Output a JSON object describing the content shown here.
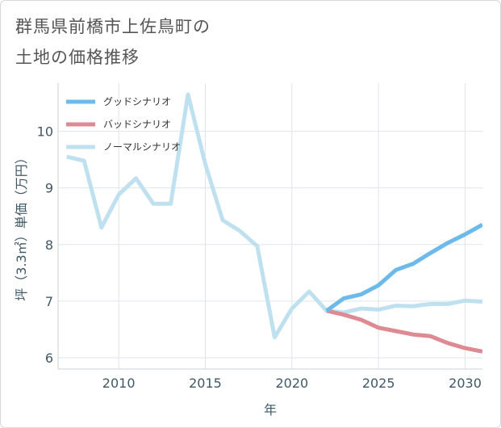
{
  "title": [
    "群馬県前橋市上佐鳥町の",
    "土地の価格推移"
  ],
  "chart_data": {
    "type": "line",
    "xlabel": "年",
    "ylabel": "坪（3.3㎡）単価（万円）",
    "xlim": [
      2006.5,
      2031
    ],
    "ylim": [
      5.8,
      10.85
    ],
    "xticks": [
      2010,
      2015,
      2020,
      2025,
      2030
    ],
    "yticks": [
      6,
      7,
      8,
      9,
      10
    ],
    "grid": true,
    "legend_position": "top-left",
    "series": [
      {
        "name": "グッドシナリオ",
        "color": "#6cbaec",
        "x": [
          2022,
          2023,
          2024,
          2025,
          2026,
          2027,
          2028,
          2029,
          2030,
          2031
        ],
        "values": [
          6.83,
          7.05,
          7.12,
          7.28,
          7.55,
          7.66,
          7.85,
          8.03,
          8.18,
          8.35
        ]
      },
      {
        "name": "バッドシナリオ",
        "color": "#de8a93",
        "x": [
          2022,
          2023,
          2024,
          2025,
          2026,
          2027,
          2028,
          2029,
          2030,
          2031
        ],
        "values": [
          6.83,
          6.76,
          6.67,
          6.53,
          6.47,
          6.41,
          6.38,
          6.26,
          6.17,
          6.11
        ]
      },
      {
        "name": "ノーマルシナリオ",
        "color": "#bfe1ef",
        "x": [
          2007,
          2008,
          2009,
          2010,
          2011,
          2012,
          2013,
          2014,
          2015,
          2016,
          2017,
          2018,
          2019,
          2020,
          2021,
          2022,
          2023,
          2024,
          2025,
          2026,
          2027,
          2028,
          2029,
          2030,
          2031
        ],
        "values": [
          9.55,
          9.48,
          8.3,
          8.88,
          9.17,
          8.72,
          8.72,
          10.65,
          9.42,
          8.43,
          8.24,
          7.97,
          6.36,
          6.87,
          7.17,
          6.83,
          6.8,
          6.87,
          6.85,
          6.92,
          6.91,
          6.95,
          6.95,
          7.01,
          6.99
        ]
      }
    ]
  }
}
